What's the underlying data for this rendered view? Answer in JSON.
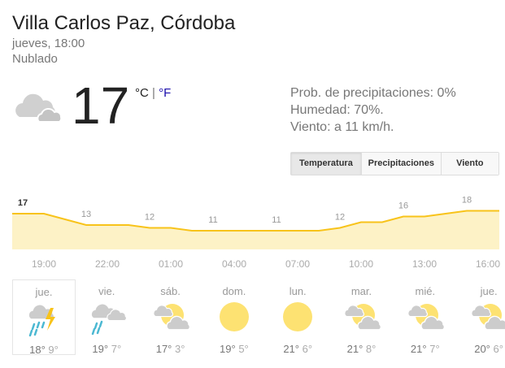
{
  "location": "Villa Carlos Paz, Córdoba",
  "datetime": "jueves, 18:00",
  "condition": "Nublado",
  "current": {
    "temp": "17",
    "unit_c": "°C",
    "sep": " | ",
    "unit_f": "°F",
    "icon": "cloudy-icon"
  },
  "details": {
    "precip": "Prob. de precipitaciones: 0%",
    "humidity": "Humedad: 70%.",
    "wind": "Viento: a 11 km/h."
  },
  "tabs": [
    "Temperatura",
    "Precipitaciones",
    "Viento"
  ],
  "selected_tab": "Temperatura",
  "colors": {
    "line": "#f8c31a",
    "fill": "#fdf2c6",
    "sun": "#fde272",
    "cloud": "#cccccc",
    "rain": "#4bb8d2"
  },
  "chart_data": {
    "type": "area",
    "hours": [
      "18:00",
      "19:00",
      "20:00",
      "21:00",
      "22:00",
      "23:00",
      "00:00",
      "01:00",
      "02:00",
      "03:00",
      "04:00",
      "05:00",
      "06:00",
      "07:00",
      "08:00",
      "09:00",
      "10:00",
      "11:00",
      "12:00",
      "13:00",
      "14:00",
      "15:00",
      "16:00",
      "17:00"
    ],
    "values": [
      17,
      17,
      15,
      13,
      13,
      13,
      12,
      12,
      11,
      11,
      11,
      11,
      11,
      11,
      11,
      12,
      14,
      14,
      16,
      16,
      17,
      18,
      18,
      18
    ],
    "point_labels": [
      {
        "hour": "18:00",
        "value": "17"
      },
      {
        "hour": "21:00",
        "value": "13"
      },
      {
        "hour": "00:00",
        "value": "12"
      },
      {
        "hour": "03:00",
        "value": "11"
      },
      {
        "hour": "06:00",
        "value": "11"
      },
      {
        "hour": "09:00",
        "value": "12"
      },
      {
        "hour": "12:00",
        "value": "16"
      },
      {
        "hour": "15:00",
        "value": "18"
      }
    ],
    "x_tick_labels": [
      "19:00",
      "22:00",
      "01:00",
      "04:00",
      "07:00",
      "10:00",
      "13:00",
      "16:00"
    ]
  },
  "forecast": [
    {
      "day": "jue.",
      "hi": "18°",
      "lo": "9°",
      "icon": "thunderstorm-icon"
    },
    {
      "day": "vie.",
      "hi": "19°",
      "lo": "7°",
      "icon": "rain-icon"
    },
    {
      "day": "sáb.",
      "hi": "17°",
      "lo": "3°",
      "icon": "partly-cloudy-icon"
    },
    {
      "day": "dom.",
      "hi": "19°",
      "lo": "5°",
      "icon": "sunny-icon"
    },
    {
      "day": "lun.",
      "hi": "21°",
      "lo": "6°",
      "icon": "sunny-icon"
    },
    {
      "day": "mar.",
      "hi": "21°",
      "lo": "8°",
      "icon": "partly-cloudy-icon"
    },
    {
      "day": "mié.",
      "hi": "21°",
      "lo": "7°",
      "icon": "partly-cloudy-icon"
    },
    {
      "day": "jue.",
      "hi": "20°",
      "lo": "6°",
      "icon": "partly-cloudy-icon"
    }
  ]
}
